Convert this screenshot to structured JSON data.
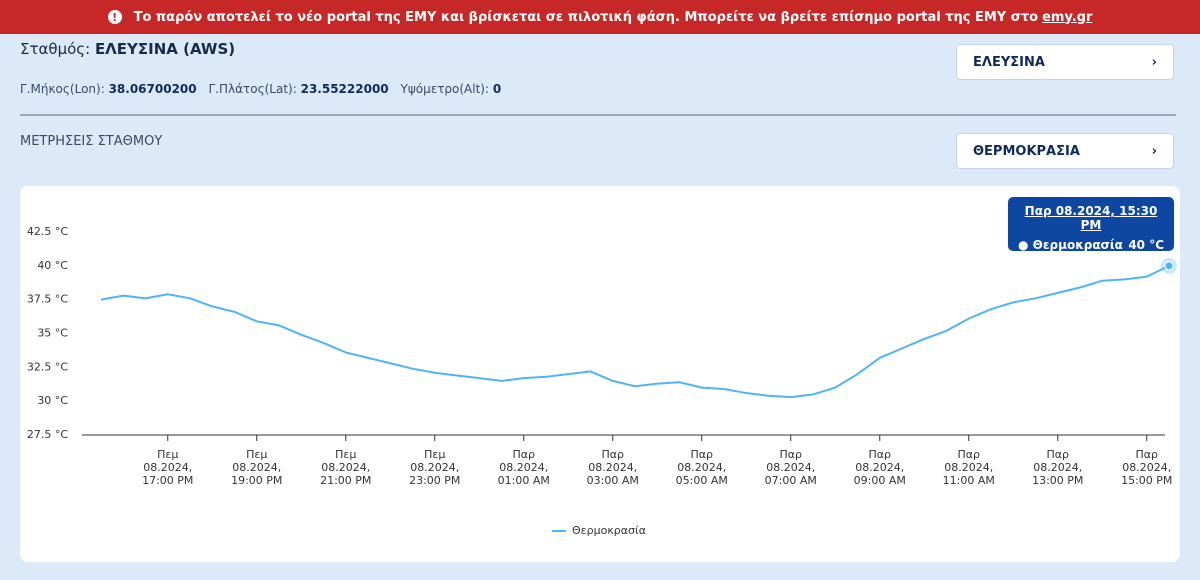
{
  "banner": {
    "text": "Το παρόν αποτελεί το νέο portal της ΕΜΥ και βρίσκεται σε πιλοτική φάση. Μπορείτε να βρείτε επίσημο portal της ΕΜΥ στο",
    "link": "emy.gr"
  },
  "station": {
    "label": "Σταθμός:",
    "name": "ΕΛΕΥΣΙΝΑ (AWS)",
    "lon_label": "Γ.Μήκος(Lon):",
    "lon": "38.06700200",
    "lat_label": "Γ.Πλάτος(Lat):",
    "lat": "23.55222000",
    "alt_label": "Υψόμετρο(Alt):",
    "alt": "0"
  },
  "station_select": "ΕΛΕΥΣΙΝΑ",
  "section_title": "ΜΕΤΡΗΣΕΙΣ ΣΤΑΘΜΟΥ",
  "measure_select": "ΘΕΡΜΟΚΡΑΣΙΑ",
  "chart_data": {
    "type": "line",
    "categories": [
      null,
      null,
      null,
      "Πεμ 08.2024, 17:00 PM",
      null,
      null,
      null,
      "Πεμ 08.2024, 19:00 PM",
      null,
      null,
      null,
      "Πεμ 08.2024, 21:00 PM",
      null,
      null,
      null,
      "Πεμ 08.2024, 23:00 PM",
      null,
      null,
      null,
      "Παρ 08.2024, 01:00 AM",
      null,
      null,
      null,
      "Παρ 08.2024, 03:00 AM",
      null,
      null,
      null,
      "Παρ 08.2024, 05:00 AM",
      null,
      null,
      null,
      "Παρ 08.2024, 07:00 AM",
      null,
      null,
      null,
      "Παρ 08.2024, 09:00 AM",
      null,
      null,
      null,
      "Παρ 08.2024, 11:00 AM",
      null,
      null,
      null,
      "Παρ 08.2024, 13:00 PM",
      null,
      null,
      null,
      "Παρ 08.2024, 15:00 PM",
      null
    ],
    "series": [
      {
        "name": "Θερμοκρασία",
        "color": "#4fb3f6",
        "values": [
          37.5,
          37.8,
          37.6,
          37.9,
          37.6,
          37.0,
          36.6,
          35.9,
          35.6,
          34.9,
          34.3,
          33.6,
          33.2,
          32.8,
          32.4,
          32.1,
          31.9,
          31.7,
          31.5,
          31.7,
          31.8,
          32.0,
          32.2,
          31.5,
          31.1,
          31.3,
          31.4,
          31.0,
          30.9,
          30.6,
          30.4,
          30.3,
          30.5,
          31.0,
          32.0,
          33.2,
          33.9,
          34.6,
          35.2,
          36.1,
          36.8,
          37.3,
          37.6,
          38.0,
          38.4,
          38.9,
          39.0,
          39.2,
          40
        ]
      }
    ],
    "ylim": [
      27.5,
      42.5
    ],
    "yticks": [
      {
        "value": 27.5,
        "label": "27.5 °C"
      },
      {
        "value": 30,
        "label": "30 °C"
      },
      {
        "value": 32.5,
        "label": "32.5 °C"
      },
      {
        "value": 35,
        "label": "35 °C"
      },
      {
        "value": 37.5,
        "label": "37.5 °C"
      },
      {
        "value": 40,
        "label": "40 °C"
      },
      {
        "value": 42.5,
        "label": "42.5 °C"
      }
    ],
    "grid": false,
    "legend": "bottom",
    "tooltip": {
      "title": "Παρ 08.2024, 15:30 PM",
      "value": "40 °C"
    }
  }
}
